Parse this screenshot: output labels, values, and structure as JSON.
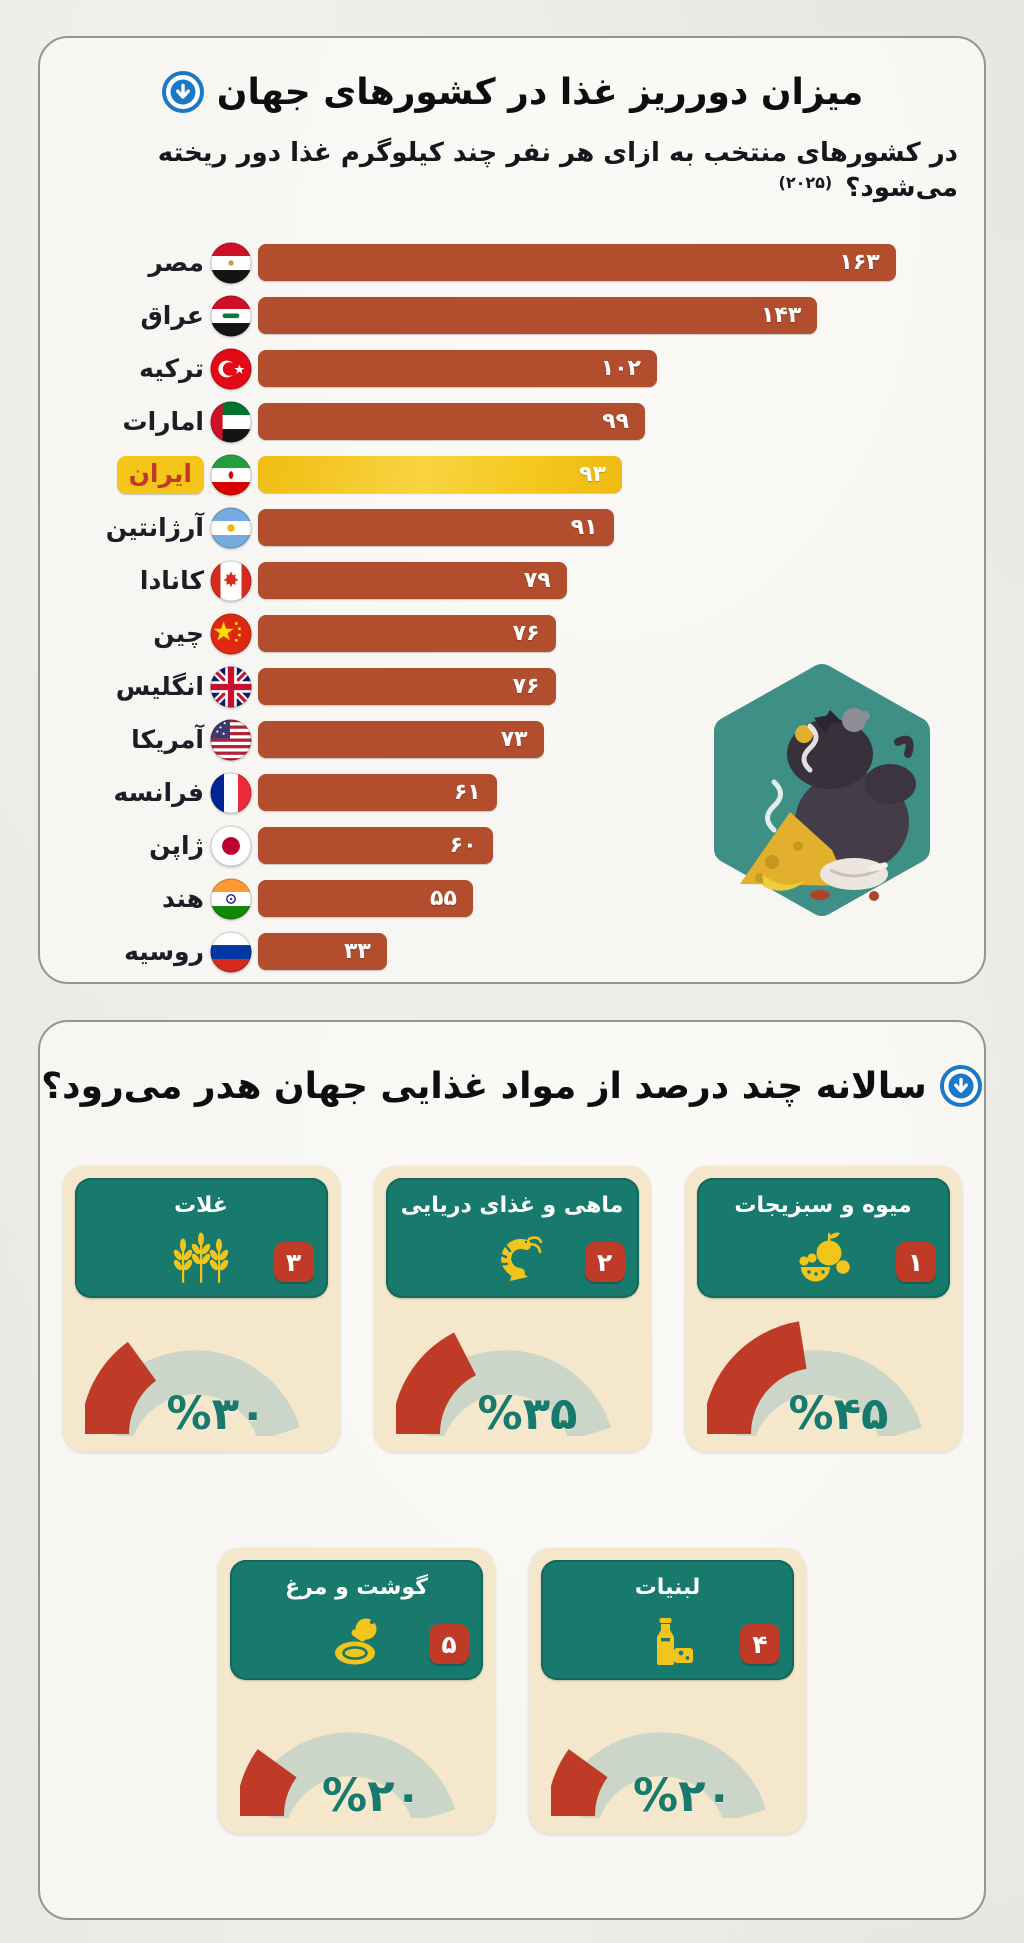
{
  "colors": {
    "bar": "#b24d2e",
    "highlight_bar": "#f5c51a",
    "highlight_label_text": "#c0392b",
    "accent_blue": "#1a79c6",
    "teal": "#187a6c",
    "card_background": "#f4e7cb",
    "gauge_track": "#cbd6c8",
    "gauge_fill": "#bf3a27",
    "rank_badge": "#c03a28",
    "icon_yellow": "#f2c51d",
    "illustration_teal": "#3e9086"
  },
  "panel1": {
    "title": "میزان دورریز غذا در کشورهای جهان",
    "title_icon": "circle-down-arrow-icon",
    "subtitle": "در کشورهای منتخب به ازای هر نفر چند کیلوگرم غذا دور ریخته می‌شود؟",
    "subtitle_note": "(۲۰۲۵)"
  },
  "panel2": {
    "title": "سالانه چند درصد از مواد غذایی جهان هدر می‌رود؟",
    "title_icon": "circle-down-arrow-icon"
  },
  "chart_data": [
    {
      "type": "bar",
      "orientation": "horizontal",
      "title": "میزان دورریز غذا در کشورهای جهان",
      "subtitle": "در کشورهای منتخب به ازای هر نفر چند کیلوگرم غذا دور ریخته می‌شود؟ (۲۰۲۵)",
      "categories": [
        "مصر",
        "عراق",
        "ترکیه",
        "امارات",
        "ایران",
        "آرژانتین",
        "کانادا",
        "چین",
        "انگلیس",
        "آمریکا",
        "فرانسه",
        "ژاپن",
        "هند",
        "روسیه"
      ],
      "values": [
        163,
        143,
        102,
        99,
        93,
        91,
        79,
        76,
        76,
        73,
        61,
        60,
        55,
        33
      ],
      "value_labels": [
        "۱۶۳",
        "۱۴۳",
        "۱۰۲",
        "۹۹",
        "۹۳",
        "۹۱",
        "۷۹",
        "۷۶",
        "۷۶",
        "۷۳",
        "۶۱",
        "۶۰",
        "۵۵",
        "۳۳"
      ],
      "flags": [
        "egypt",
        "iraq",
        "turkey",
        "uae",
        "iran",
        "argentina",
        "canada",
        "china",
        "uk",
        "usa",
        "france",
        "japan",
        "india",
        "russia"
      ],
      "highlight_index": 4,
      "xlim": [
        0,
        179
      ],
      "grid": false,
      "legend": false
    },
    {
      "type": "gauge",
      "title": "سالانه چند درصد از مواد غذایی جهان هدر می‌رود؟",
      "items": [
        {
          "rank": "۱",
          "label": "میوه و سبزیجات",
          "percent": 45,
          "percent_label": "%۴۵",
          "icon": "fruits-icon"
        },
        {
          "rank": "۲",
          "label": "ماهی و غذای دریایی",
          "percent": 35,
          "percent_label": "%۳۵",
          "icon": "shrimp-icon"
        },
        {
          "rank": "۳",
          "label": "غلات",
          "percent": 30,
          "percent_label": "%۳۰",
          "icon": "wheat-icon"
        },
        {
          "rank": "۴",
          "label": "لبنیات",
          "percent": 20,
          "percent_label": "%۲۰",
          "icon": "dairy-icon"
        },
        {
          "rank": "۵",
          "label": "گوشت و مرغ",
          "percent": 20,
          "percent_label": "%۲۰",
          "icon": "meat-icon"
        }
      ]
    }
  ]
}
